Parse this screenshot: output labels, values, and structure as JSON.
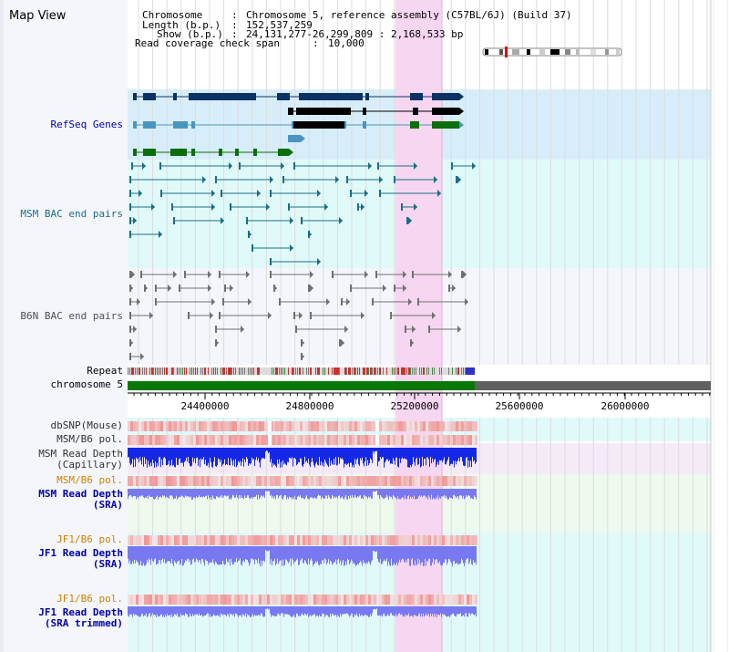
{
  "app": {
    "title": "Map View"
  },
  "info": {
    "chromosome_label": "Chromosome",
    "chromosome_value": "Chromosome 5, reference assembly (C57BL/6J) (Build 37)",
    "length_label": "Length (b.p.)",
    "length_value": "152,537,259",
    "show_label": "Show (b.p.)",
    "show_value": "24,131,277-26,299,809 : 2,168,533 bp",
    "coverage_label": "Read coverage check span",
    "coverage_value": "10,000"
  },
  "tracks": {
    "refseq": "RefSeq Genes",
    "msm_bac": "MSM BAC end pairs",
    "b6n_bac": "B6N BAC end pairs",
    "repeat": "Repeat",
    "chromosome": "chromosome 5",
    "dbsnp": "dbSNP(Mouse)",
    "msm_b6_pol_1": "MSM/B6 pol.",
    "msm_read_depth_cap_1": "MSM Read Depth",
    "msm_read_depth_cap_2": "(Capillary)",
    "msm_b6_pol_2": "MSM/B6 pol.",
    "msm_read_depth_sra_1": "MSM Read Depth",
    "msm_read_depth_sra_2": "(SRA)",
    "jf1_b6_pol_1": "JF1/B6 pol.",
    "jf1_read_depth_sra_1": "JF1 Read Depth",
    "jf1_read_depth_sra_2": "(SRA)",
    "jf1_b6_pol_2": "JF1/B6 pol.",
    "jf1_read_depth_trim_1": "JF1 Read Depth",
    "jf1_read_depth_trim_2": "(SRA trimmed)"
  },
  "scale": {
    "ticks": [
      "24400000",
      "24800000",
      "25200000",
      "25600000",
      "26000000"
    ]
  },
  "colors": {
    "refseq_bg": "#d7eefa",
    "msm_bg": "#e0fafa",
    "b6n_bg": "#f4f6fb",
    "highlight": "#f6d6f0",
    "chrom_green": "#087808",
    "chrom_gray": "#606060",
    "gene_navy": "#0a3264",
    "gene_light": "#4896c0",
    "gene_green": "#0a6e0a",
    "bac_teal": "#1a6e86",
    "bac_gray": "#707070",
    "depth_blue": "#1428e6",
    "depth_lilac": "#7878f0",
    "snp_red": "#f07070"
  }
}
